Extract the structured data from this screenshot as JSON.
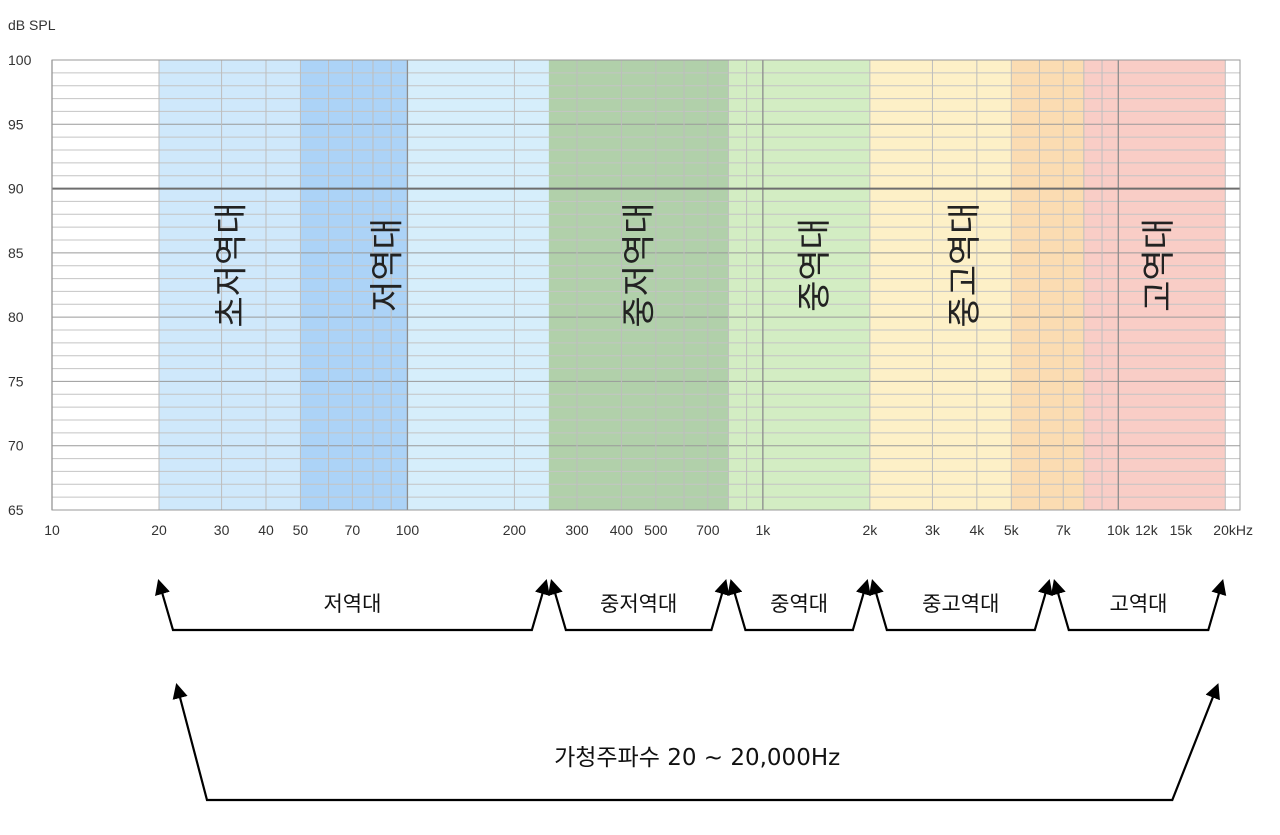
{
  "chart_data": {
    "type": "area",
    "ylabel": "dB SPL",
    "xlim": [
      10,
      22000
    ],
    "ylim": [
      65,
      100
    ],
    "x_scale": "log",
    "grid": true,
    "x_ticks": [
      {
        "v": 10,
        "label": "10"
      },
      {
        "v": 20,
        "label": "20"
      },
      {
        "v": 30,
        "label": "30"
      },
      {
        "v": 40,
        "label": "40"
      },
      {
        "v": 50,
        "label": "50"
      },
      {
        "v": 70,
        "label": "70"
      },
      {
        "v": 100,
        "label": "100"
      },
      {
        "v": 200,
        "label": "200"
      },
      {
        "v": 300,
        "label": "300"
      },
      {
        "v": 400,
        "label": "400"
      },
      {
        "v": 500,
        "label": "500"
      },
      {
        "v": 700,
        "label": "700"
      },
      {
        "v": 1000,
        "label": "1k"
      },
      {
        "v": 2000,
        "label": "2k"
      },
      {
        "v": 3000,
        "label": "3k"
      },
      {
        "v": 4000,
        "label": "4k"
      },
      {
        "v": 5000,
        "label": "5k"
      },
      {
        "v": 7000,
        "label": "7k"
      },
      {
        "v": 10000,
        "label": "10k"
      },
      {
        "v": 12000,
        "label": "12k"
      },
      {
        "v": 15000,
        "label": "15k"
      },
      {
        "v": 20000,
        "label": "20kHz"
      }
    ],
    "y_ticks": [
      65,
      70,
      75,
      80,
      85,
      90,
      95,
      100
    ],
    "reference_line_db": 90,
    "bands": [
      {
        "from": 20,
        "to": 250,
        "color": "#cfe8fb"
      },
      {
        "from": 50,
        "to": 100,
        "color": "#acd3f7"
      },
      {
        "from": 100,
        "to": 250,
        "color": "#d6eefb"
      },
      {
        "from": 250,
        "to": 800,
        "color": "#b1d0aa"
      },
      {
        "from": 800,
        "to": 2000,
        "color": "#d3edc3"
      },
      {
        "from": 2000,
        "to": 5000,
        "color": "#fdf0c7"
      },
      {
        "from": 5000,
        "to": 8000,
        "color": "#fbdcb2"
      },
      {
        "from": 8000,
        "to": 20000,
        "color": "#f9cdc6"
      }
    ],
    "band_labels": [
      {
        "text": "초저역대",
        "x": 32
      },
      {
        "text": "저역대",
        "x": 88
      },
      {
        "text": "중저역대",
        "x": 450
      },
      {
        "text": "중역대",
        "x": 1400
      },
      {
        "text": "중고역대",
        "x": 3700
      },
      {
        "text": "고역대",
        "x": 13000
      }
    ]
  },
  "ranges": [
    {
      "label": "저역대",
      "from": 20,
      "to": 250
    },
    {
      "label": "중저역대",
      "from": 250,
      "to": 800
    },
    {
      "label": "중역대",
      "from": 800,
      "to": 2000
    },
    {
      "label": "중고역대",
      "from": 2000,
      "to": 6500
    },
    {
      "label": "고역대",
      "from": 6500,
      "to": 20000
    }
  ],
  "hearing_range": {
    "label": "가청주파수 20 ~ 20,000Hz",
    "from": 20,
    "to": 20000
  }
}
